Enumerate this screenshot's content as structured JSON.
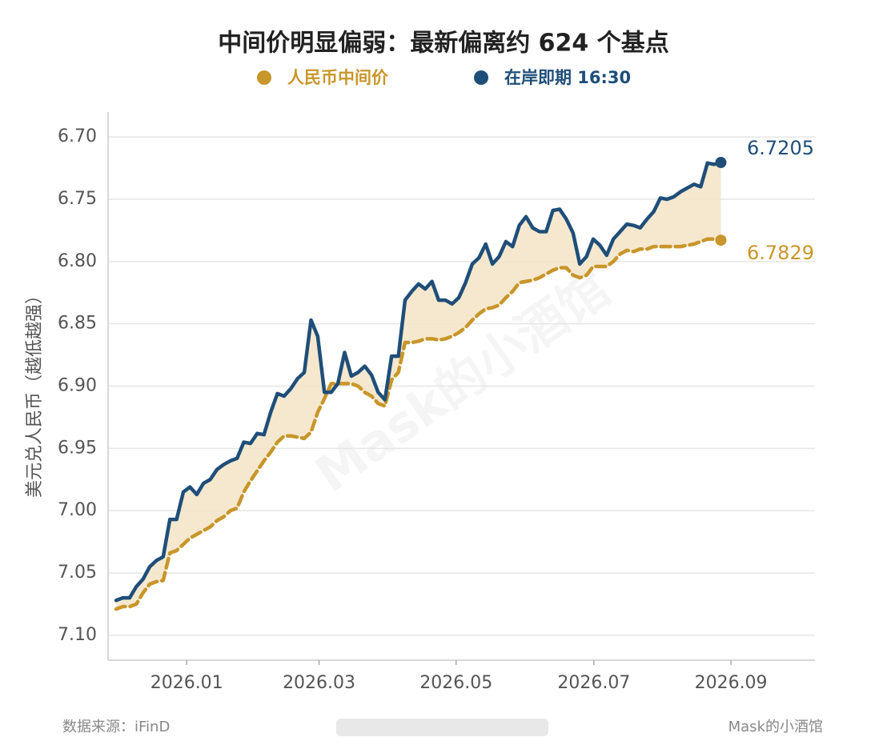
{
  "chart_data": {
    "type": "line",
    "title": "中间价明显偏弱：最新偏离约 624 个基点",
    "y_label": "美元兑人民币（越低越强）",
    "source": "数据来源：iFinD",
    "credit": "Mask的小酒馆",
    "watermark": "Mask的小酒馆",
    "legend": "top",
    "grid": true,
    "y_inverted": true,
    "fill_between": "#f3e4c6",
    "ylim": [
      6.68,
      7.12
    ],
    "yticks": [
      {
        "value": 6.7,
        "label": "6.70"
      },
      6.75,
      {
        "value": 6.8,
        "label": "6.80"
      },
      6.85,
      {
        "value": 6.9,
        "label": "6.90"
      },
      6.95,
      {
        "value": 7.0,
        "label": "7.00"
      },
      7.05,
      {
        "value": 7.1,
        "label": "7.10"
      }
    ],
    "xlim": [
      -1.2,
      104
    ],
    "xticks": [
      {
        "value": 10.5,
        "label": "2026.01"
      },
      {
        "value": 30.2,
        "label": "2026.03"
      },
      {
        "value": 50.6,
        "label": "2026.05"
      },
      {
        "value": 71.1,
        "label": "2026.07"
      },
      {
        "value": 91.5,
        "label": "2026.09"
      }
    ],
    "categories": [
      null,
      null,
      null,
      null,
      null,
      null,
      null,
      null,
      null,
      null,
      null,
      null,
      null,
      null,
      null,
      null,
      null,
      null,
      null,
      null,
      null,
      null,
      null,
      null,
      null,
      null,
      null,
      null,
      null,
      null,
      null,
      null,
      null,
      null,
      null,
      null,
      null,
      null,
      null,
      null,
      null,
      null,
      null,
      null,
      null,
      null,
      null,
      null,
      null,
      null,
      null,
      null,
      null,
      null,
      null,
      null,
      null,
      null,
      null,
      null,
      null,
      null,
      null,
      null,
      null,
      null,
      null,
      null,
      null,
      null,
      null,
      null,
      null,
      null,
      null,
      null,
      null,
      null,
      null,
      null,
      null,
      null,
      null,
      null,
      null,
      null,
      null,
      null,
      null,
      null,
      null
    ],
    "series": [
      {
        "name": "人民币中间价",
        "color": "#c8962a",
        "line_style": "dashed",
        "values": [
          7.079,
          7.077,
          7.077,
          7.075,
          7.066,
          7.059,
          7.057,
          7.056,
          7.034,
          7.032,
          7.027,
          7.022,
          7.019,
          7.016,
          7.013,
          7.008,
          7.005,
          7.0,
          6.998,
          6.985,
          6.976,
          6.968,
          6.96,
          6.953,
          6.945,
          6.94,
          6.94,
          6.941,
          6.942,
          6.937,
          6.921,
          6.91,
          6.898,
          6.898,
          6.898,
          6.898,
          6.9,
          6.905,
          6.908,
          6.914,
          6.916,
          6.895,
          6.889,
          6.865,
          6.865,
          6.864,
          6.862,
          6.862,
          6.863,
          6.862,
          6.86,
          6.857,
          6.853,
          6.847,
          6.842,
          6.838,
          6.837,
          6.835,
          6.829,
          6.824,
          6.817,
          6.816,
          6.815,
          6.813,
          6.81,
          6.807,
          6.805,
          6.805,
          6.811,
          6.813,
          6.811,
          6.804,
          6.804,
          6.804,
          6.8,
          6.794,
          6.791,
          6.792,
          6.79,
          6.79,
          6.788,
          6.788,
          6.788,
          6.788,
          6.788,
          6.787,
          6.786,
          6.784,
          6.782,
          6.782,
          6.7829
        ]
      },
      {
        "name": "在岸即期 16:30",
        "color": "#1f4e79",
        "line_style": "solid",
        "values": [
          7.072,
          7.07,
          7.07,
          7.061,
          7.055,
          7.045,
          7.04,
          7.037,
          7.007,
          7.007,
          6.985,
          6.981,
          6.987,
          6.978,
          6.975,
          6.967,
          6.963,
          6.96,
          6.958,
          6.945,
          6.946,
          6.938,
          6.939,
          6.921,
          6.906,
          6.908,
          6.902,
          6.894,
          6.889,
          6.847,
          6.86,
          6.905,
          6.905,
          6.898,
          6.873,
          6.892,
          6.889,
          6.884,
          6.891,
          6.905,
          6.911,
          6.876,
          6.876,
          6.831,
          6.824,
          6.818,
          6.822,
          6.816,
          6.831,
          6.831,
          6.834,
          6.829,
          6.817,
          6.802,
          6.797,
          6.786,
          6.802,
          6.796,
          6.784,
          6.788,
          6.771,
          6.764,
          6.773,
          6.776,
          6.776,
          6.759,
          6.758,
          6.766,
          6.777,
          6.802,
          6.796,
          6.782,
          6.787,
          6.795,
          6.782,
          6.776,
          6.77,
          6.771,
          6.773,
          6.766,
          6.76,
          6.749,
          6.75,
          6.748,
          6.744,
          6.741,
          6.738,
          6.74,
          6.721,
          6.722,
          6.7205
        ]
      }
    ]
  }
}
